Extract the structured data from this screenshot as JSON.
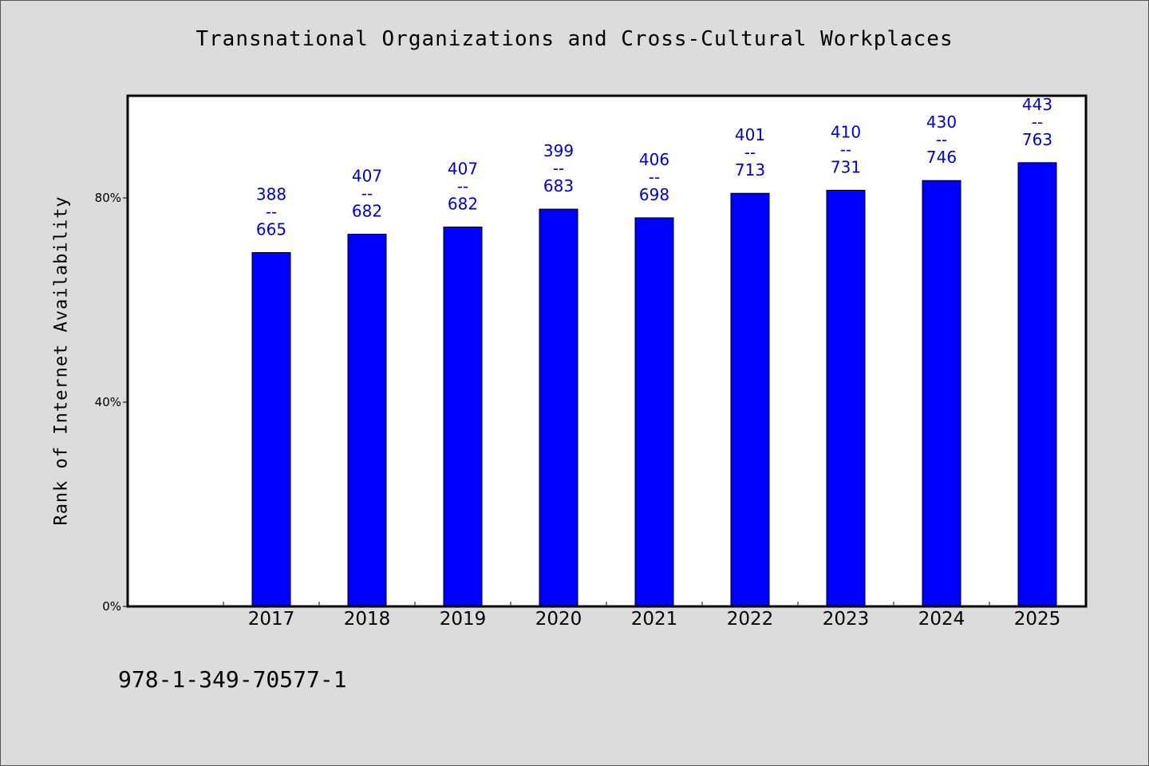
{
  "chart_data": {
    "type": "bar",
    "title": "Transnational Organizations and Cross-Cultural Workplaces",
    "xlabel": "",
    "ylabel": "Rank of Internet Availability",
    "categories": [
      "2017",
      "2018",
      "2019",
      "2020",
      "2021",
      "2022",
      "2023",
      "2024",
      "2025"
    ],
    "series": [
      {
        "values": [
          0.693,
          0.729,
          0.743,
          0.778,
          0.761,
          0.809,
          0.815,
          0.834,
          0.869
        ],
        "color": "#0000ff"
      }
    ],
    "data_labels": [
      [
        "388",
        "--",
        "665"
      ],
      [
        "407",
        "--",
        "682"
      ],
      [
        "407",
        "--",
        "682"
      ],
      [
        "399",
        "--",
        "683"
      ],
      [
        "406",
        "--",
        "698"
      ],
      [
        "401",
        "--",
        "713"
      ],
      [
        "410",
        "--",
        "731"
      ],
      [
        "430",
        "--",
        "746"
      ],
      [
        "443",
        "--",
        "763"
      ]
    ],
    "ylim": [
      0,
      1.0
    ],
    "yticks": [
      0,
      0.4,
      0.8
    ],
    "ytick_labels": [
      "0%",
      "40%",
      "80%"
    ],
    "grid": false,
    "legend": "none"
  },
  "footer_text": "978-1-349-70577-1"
}
